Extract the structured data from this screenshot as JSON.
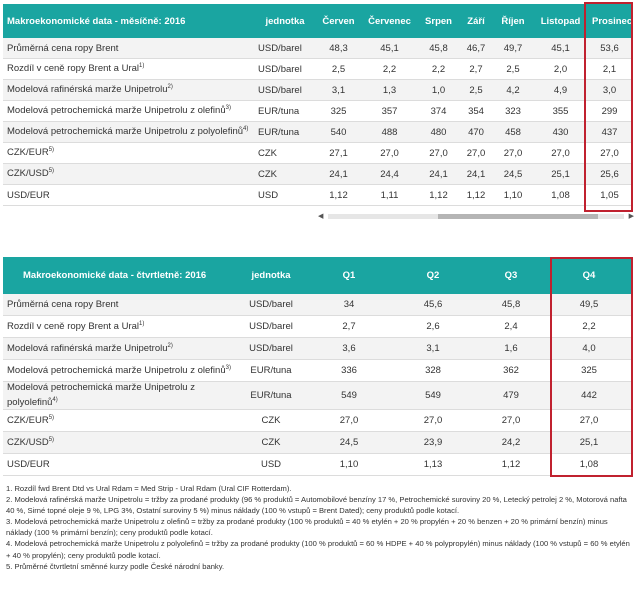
{
  "monthly": {
    "headers": [
      "Makroekonomické data - měsíčně: 2016",
      "jednotka",
      "Červen",
      "Červenec",
      "Srpen",
      "Září",
      "Říjen",
      "Listopad",
      "Prosinec"
    ],
    "rows": [
      {
        "label": "Průměrná cena ropy Brent",
        "sup": "",
        "unit": "USD/barel",
        "values": [
          "48,3",
          "45,1",
          "45,8",
          "46,7",
          "49,7",
          "45,1",
          "53,6"
        ]
      },
      {
        "label": "Rozdíl v ceně ropy Brent a Ural",
        "sup": "1)",
        "unit": "USD/barel",
        "values": [
          "2,5",
          "2,2",
          "2,2",
          "2,7",
          "2,5",
          "2,0",
          "2,1"
        ]
      },
      {
        "label": "Modelová rafinérská marže Unipetrolu",
        "sup": "2)",
        "unit": "USD/barel",
        "values": [
          "3,1",
          "1,3",
          "1,0",
          "2,5",
          "4,2",
          "4,9",
          "3,0"
        ]
      },
      {
        "label": "Modelová petrochemická marže Unipetrolu z olefinů",
        "sup": "3)",
        "unit": "EUR/tuna",
        "values": [
          "325",
          "357",
          "374",
          "354",
          "323",
          "355",
          "299"
        ]
      },
      {
        "label": "Modelová petrochemická marže Unipetrolu z polyolefinů",
        "sup": "4)",
        "unit": "EUR/tuna",
        "values": [
          "540",
          "488",
          "480",
          "470",
          "458",
          "430",
          "437"
        ]
      },
      {
        "label": "CZK/EUR",
        "sup": "5)",
        "unit": "CZK",
        "values": [
          "27,1",
          "27,0",
          "27,0",
          "27,0",
          "27,0",
          "27,0",
          "27,0"
        ]
      },
      {
        "label": "CZK/USD",
        "sup": "5)",
        "unit": "CZK",
        "values": [
          "24,1",
          "24,4",
          "24,1",
          "24,1",
          "24,5",
          "25,1",
          "25,6"
        ]
      },
      {
        "label": "USD/EUR",
        "sup": "",
        "unit": "USD",
        "values": [
          "1,12",
          "1,11",
          "1,12",
          "1,12",
          "1,10",
          "1,08",
          "1,05"
        ]
      }
    ]
  },
  "quarterly": {
    "headers": [
      "Makroekonomické data - čtvrtletně: 2016",
      "jednotka",
      "Q1",
      "Q2",
      "Q3",
      "Q4"
    ],
    "rows": [
      {
        "label": "Průměrná cena ropy Brent",
        "sup": "",
        "unit": "USD/barel",
        "values": [
          "34",
          "45,6",
          "45,8",
          "49,5"
        ]
      },
      {
        "label": "Rozdíl v ceně ropy Brent a Ural",
        "sup": "1)",
        "unit": "USD/barel",
        "values": [
          "2,7",
          "2,6",
          "2,4",
          "2,2"
        ]
      },
      {
        "label": "Modelová rafinérská marže Unipetrolu",
        "sup": "2)",
        "unit": "USD/barel",
        "values": [
          "3,6",
          "3,1",
          "1,6",
          "4,0"
        ]
      },
      {
        "label": "Modelová petrochemická marže Unipetrolu z olefinů",
        "sup": "3)",
        "unit": "EUR/tuna",
        "values": [
          "336",
          "328",
          "362",
          "325"
        ]
      },
      {
        "label": "Modelová petrochemická marže Unipetrolu z polyolefinů",
        "sup": "4)",
        "unit": "EUR/tuna",
        "values": [
          "549",
          "549",
          "479",
          "442"
        ]
      },
      {
        "label": "CZK/EUR",
        "sup": "5)",
        "unit": "CZK",
        "values": [
          "27,0",
          "27,0",
          "27,0",
          "27,0"
        ]
      },
      {
        "label": "CZK/USD",
        "sup": "5)",
        "unit": "CZK",
        "values": [
          "24,5",
          "23,9",
          "24,2",
          "25,1"
        ]
      },
      {
        "label": "USD/EUR",
        "sup": "",
        "unit": "USD",
        "values": [
          "1,10",
          "1,13",
          "1,12",
          "1,08"
        ]
      }
    ]
  },
  "notes": [
    "1. Rozdíl fwd Brent Dtd vs Ural Rdam = Med Strip - Ural Rdam (Ural CIF Rotterdam).",
    "2. Modelová rafinérská marže Unipetrolu = tržby za prodané produkty (96 % produktů = Automobilové benzíny 17 %, Petrochemické suroviny 20 %, Letecký petrolej 2 %, Motorová nafta 40 %, Sirné topné oleje 9 %, LPG 3%, Ostatní suroviny 5 %) minus náklady (100 % vstupů = Brent Dated); ceny produktů podle kotací.",
    "3. Modelová petrochemická marže Unipetrolu z olefinů = tržby za prodané produkty (100 % produktů = 40 % etylén + 20 % propylén + 20 % benzen + 20 % primární benzín) minus náklady (100 % primární benzín); ceny produktů podle kotací.",
    "4. Modelová petrochemická marže Unipetrolu z polyolefinů = tržby za prodané produkty (100 % produktů = 60 % HDPE + 40 % polypropylén) minus náklady (100 % vstupů = 60 % etylén + 40 % propylén); ceny produktů podle kotací.",
    "5. Průměrné čtvrtletní směnné kurzy podle České národní banky."
  ]
}
